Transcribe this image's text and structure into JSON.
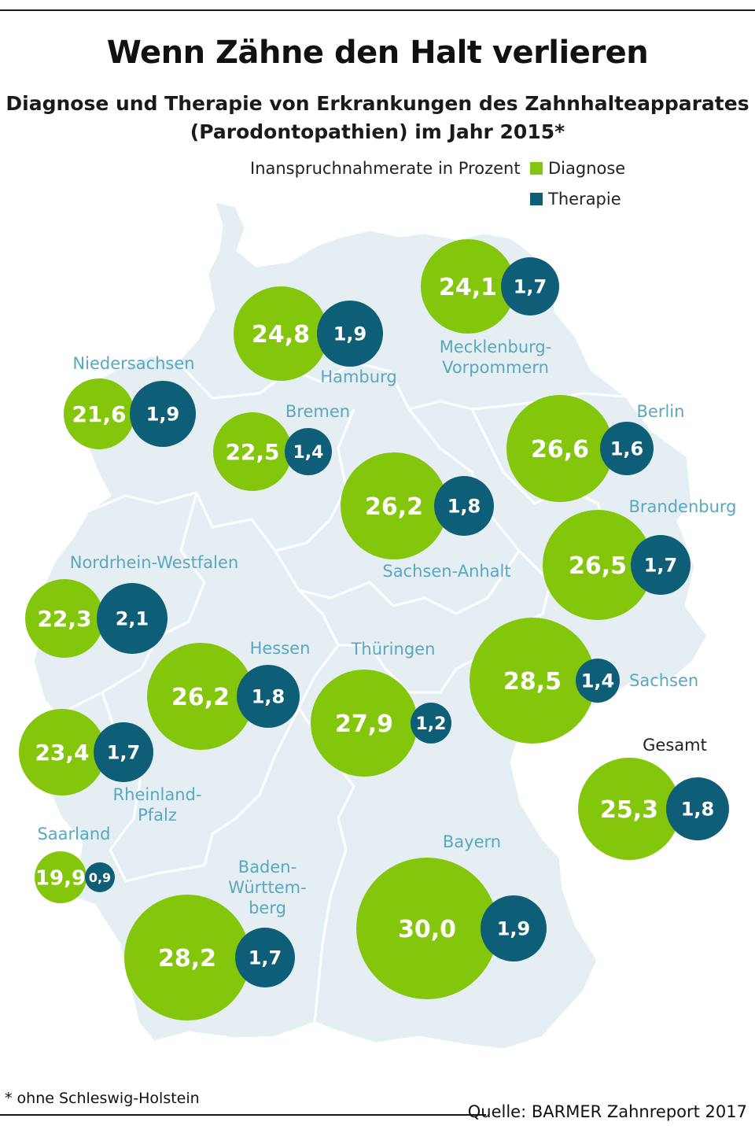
{
  "title": "Wenn Zähne den Halt verlieren",
  "subtitle_line1": "Diagnose und Therapie von Erkrankungen des Zahnhalteapparates",
  "subtitle_line2": "(Parodontopathien) im Jahr 2015*",
  "legend": {
    "caption": "Inanspruchnahmerate in Prozent",
    "diagnose": "Diagnose",
    "therapie": "Therapie"
  },
  "colors": {
    "diagnose": "#84c60c",
    "therapie": "#0e5e78",
    "label": "#5aa7c0",
    "land": "#e4eef3",
    "border": "#ffffff"
  },
  "regions": [
    {
      "name": "Hamburg",
      "diagnose": "24,8",
      "therapie": "1,9"
    },
    {
      "name": "Mecklenburg-\nVorpommern",
      "diagnose": "24,1",
      "therapie": "1,7"
    },
    {
      "name": "Niedersachsen",
      "diagnose": "21,6",
      "therapie": "1,9"
    },
    {
      "name": "Bremen",
      "diagnose": "22,5",
      "therapie": "1,4"
    },
    {
      "name": "Berlin",
      "diagnose": "26,6",
      "therapie": "1,6"
    },
    {
      "name": "Sachsen-Anhalt",
      "diagnose": "26,2",
      "therapie": "1,8"
    },
    {
      "name": "Brandenburg",
      "diagnose": "26,5",
      "therapie": "1,7"
    },
    {
      "name": "Nordrhein-Westfalen",
      "diagnose": "22,3",
      "therapie": "2,1"
    },
    {
      "name": "Hessen",
      "diagnose": "26,2",
      "therapie": "1,8"
    },
    {
      "name": "Thüringen",
      "diagnose": "27,9",
      "therapie": "1,2"
    },
    {
      "name": "Sachsen",
      "diagnose": "28,5",
      "therapie": "1,4"
    },
    {
      "name": "Rheinland-\nPfalz",
      "diagnose": "23,4",
      "therapie": "1,7"
    },
    {
      "name": "Gesamt",
      "diagnose": "25,3",
      "therapie": "1,8"
    },
    {
      "name": "Saarland",
      "diagnose": "19,9",
      "therapie": "0,9"
    },
    {
      "name": "Bayern",
      "diagnose": "30,0",
      "therapie": "1,9"
    },
    {
      "name": "Baden-\nWürttem-\nberg",
      "diagnose": "28,2",
      "therapie": "1,7"
    }
  ],
  "footnote": "* ohne Schleswig-Holstein",
  "source": "Quelle: BARMER Zahnreport 2017"
}
